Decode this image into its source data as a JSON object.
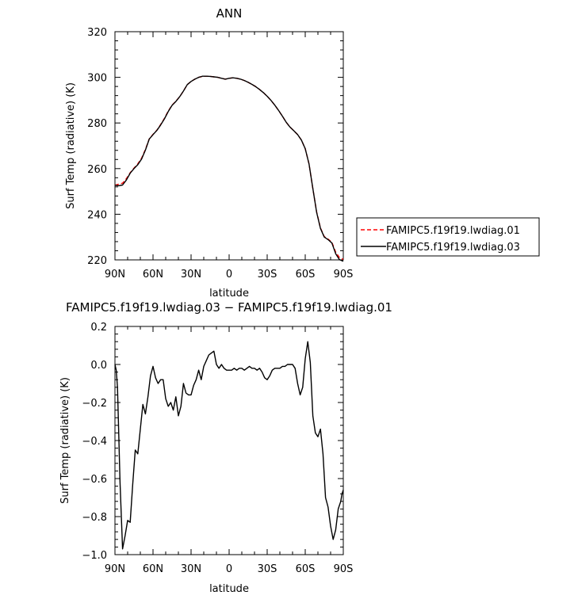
{
  "chart_data": [
    {
      "type": "line",
      "title": "ANN",
      "xlabel": "latitude",
      "ylabel": "Surf Temp (radiative) (K)",
      "xticks": [
        -90,
        -60,
        -30,
        0,
        30,
        60,
        90
      ],
      "xtick_labels": [
        "90N",
        "60N",
        "30N",
        "0",
        "30S",
        "60S",
        "90S"
      ],
      "xlim": [
        -90,
        90
      ],
      "ylim": [
        220,
        320
      ],
      "yticks": [
        220,
        240,
        260,
        280,
        300,
        320
      ],
      "ytick_labels": [
        "220",
        "240",
        "260",
        "280",
        "300",
        "320"
      ],
      "grid": false,
      "legend_position": "right",
      "series": [
        {
          "name": "FAMIPC5.f19f19.lwdiag.01",
          "color": "#ff0000",
          "dash": true,
          "x": [
            -90,
            -87,
            -84,
            -81,
            -78,
            -75,
            -72,
            -69,
            -66,
            -63,
            -60,
            -57,
            -54,
            -51,
            -48,
            -45,
            -42,
            -39,
            -36,
            -33,
            -30,
            -27,
            -24,
            -21,
            -18,
            -15,
            -12,
            -9,
            -6,
            -3,
            0,
            3,
            6,
            9,
            12,
            15,
            18,
            21,
            24,
            27,
            30,
            33,
            36,
            39,
            42,
            45,
            48,
            51,
            54,
            57,
            60,
            63,
            66,
            69,
            72,
            75,
            78,
            81,
            84,
            87,
            90
          ],
          "y": [
            252.7,
            253.2,
            253.6,
            255.6,
            258.2,
            260.2,
            262.1,
            264.6,
            268.4,
            273.0,
            275.0,
            276.8,
            279.3,
            282.0,
            285.2,
            287.8,
            289.5,
            291.5,
            294.0,
            296.8,
            298.2,
            299.2,
            300.0,
            300.4,
            300.5,
            300.4,
            300.2,
            300.0,
            299.6,
            299.2,
            299.6,
            299.8,
            299.6,
            299.2,
            298.6,
            297.8,
            296.9,
            295.9,
            294.7,
            293.3,
            291.7,
            289.9,
            287.8,
            285.5,
            283.0,
            280.3,
            278.2,
            276.6,
            274.9,
            272.5,
            268.7,
            262.0,
            251.2,
            241.0,
            234.0,
            230.2,
            229.1,
            227.7,
            223.4,
            221.0,
            220.2
          ]
        },
        {
          "name": "FAMIPC5.f19f19.lwdiag.03",
          "color": "#000000",
          "dash": false,
          "x": [
            -90,
            -87,
            -84,
            -81,
            -78,
            -75,
            -72,
            -69,
            -66,
            -63,
            -60,
            -57,
            -54,
            -51,
            -48,
            -45,
            -42,
            -39,
            -36,
            -33,
            -30,
            -27,
            -24,
            -21,
            -18,
            -15,
            -12,
            -9,
            -6,
            -3,
            0,
            3,
            6,
            9,
            12,
            15,
            18,
            21,
            24,
            27,
            30,
            33,
            36,
            39,
            42,
            45,
            48,
            51,
            54,
            57,
            60,
            63,
            66,
            69,
            72,
            75,
            78,
            81,
            84,
            87,
            90
          ],
          "y": [
            252.7,
            252.5,
            252.8,
            255.0,
            258.0,
            260.0,
            261.7,
            264.2,
            268.1,
            272.9,
            274.9,
            276.7,
            279.1,
            281.8,
            285.0,
            287.7,
            289.4,
            291.5,
            294.0,
            296.8,
            298.2,
            299.2,
            300.0,
            300.5,
            300.5,
            300.4,
            300.2,
            300.0,
            299.6,
            299.2,
            299.6,
            299.8,
            299.6,
            299.2,
            298.6,
            297.8,
            296.9,
            295.9,
            294.7,
            293.3,
            291.7,
            289.9,
            287.8,
            285.5,
            283.0,
            280.3,
            278.2,
            276.6,
            274.9,
            272.5,
            268.7,
            262.0,
            251.3,
            240.8,
            233.8,
            230.0,
            228.9,
            227.4,
            222.7,
            220.1,
            219.4
          ]
        }
      ]
    },
    {
      "type": "line",
      "title": "FAMIPC5.f19f19.lwdiag.03 − FAMIPC5.f19f19.lwdiag.01",
      "xlabel": "latitude",
      "ylabel": "Surf Temp (radiative) (K)",
      "xticks": [
        -90,
        -60,
        -30,
        0,
        30,
        60,
        90
      ],
      "xtick_labels": [
        "90N",
        "60N",
        "30N",
        "0",
        "30S",
        "60S",
        "90S"
      ],
      "xlim": [
        -90,
        90
      ],
      "ylim": [
        -1.0,
        0.2
      ],
      "yticks": [
        -1.0,
        -0.8,
        -0.6,
        -0.4,
        -0.2,
        0.0,
        0.2
      ],
      "ytick_labels": [
        "−1.0",
        "−0.8",
        "−0.6",
        "−0.4",
        "−0.2",
        "0.0",
        "0.2"
      ],
      "grid": false,
      "series": [
        {
          "color": "#000000",
          "x": [
            -90,
            -89,
            -88,
            -86,
            -84,
            -82,
            -80,
            -78,
            -76,
            -74,
            -72,
            -70,
            -68,
            -66,
            -64,
            -62,
            -60,
            -58,
            -56,
            -54,
            -52,
            -50,
            -48,
            -46,
            -44,
            -42,
            -40,
            -38,
            -36,
            -34,
            -32,
            -30,
            -28,
            -26,
            -24,
            -22,
            -20,
            -18,
            -16,
            -14,
            -12,
            -10,
            -8,
            -6,
            -4,
            -2,
            0,
            2,
            4,
            6,
            8,
            10,
            12,
            14,
            16,
            18,
            20,
            22,
            24,
            26,
            28,
            30,
            32,
            34,
            36,
            38,
            40,
            42,
            44,
            46,
            48,
            50,
            52,
            54,
            56,
            58,
            60,
            62,
            64,
            66,
            68,
            70,
            72,
            74,
            76,
            78,
            80,
            82,
            84,
            86,
            88,
            89,
            90
          ],
          "y": [
            0.0,
            -0.03,
            -0.12,
            -0.62,
            -0.97,
            -0.9,
            -0.82,
            -0.83,
            -0.63,
            -0.45,
            -0.47,
            -0.34,
            -0.21,
            -0.26,
            -0.17,
            -0.06,
            -0.01,
            -0.07,
            -0.1,
            -0.08,
            -0.08,
            -0.18,
            -0.22,
            -0.2,
            -0.24,
            -0.17,
            -0.27,
            -0.22,
            -0.1,
            -0.15,
            -0.16,
            -0.16,
            -0.11,
            -0.08,
            -0.03,
            -0.08,
            -0.01,
            0.02,
            0.05,
            0.06,
            0.07,
            0.0,
            -0.02,
            0.0,
            -0.02,
            -0.03,
            -0.03,
            -0.03,
            -0.02,
            -0.03,
            -0.02,
            -0.02,
            -0.03,
            -0.02,
            -0.01,
            -0.02,
            -0.02,
            -0.03,
            -0.02,
            -0.04,
            -0.07,
            -0.08,
            -0.06,
            -0.03,
            -0.02,
            -0.02,
            -0.02,
            -0.01,
            -0.01,
            0.0,
            0.0,
            0.0,
            -0.02,
            -0.1,
            -0.16,
            -0.12,
            0.03,
            0.12,
            0.01,
            -0.27,
            -0.36,
            -0.38,
            -0.34,
            -0.47,
            -0.7,
            -0.75,
            -0.85,
            -0.92,
            -0.87,
            -0.76,
            -0.72,
            -0.68,
            -0.66
          ]
        }
      ]
    }
  ]
}
